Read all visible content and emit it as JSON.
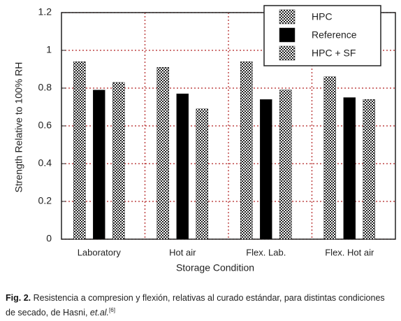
{
  "chart_data": {
    "type": "bar",
    "y_label": "Strength Relative to 100% RH",
    "x_label": "Storage Condition",
    "categories": [
      "Laboratory",
      "Hot air",
      "Flex. Lab.",
      "Flex. Hot air"
    ],
    "series": [
      {
        "name": "HPC",
        "color": "#000000",
        "pattern": "checker",
        "values": [
          0.94,
          0.91,
          0.94,
          0.86
        ]
      },
      {
        "name": "Reference",
        "color": "#000000",
        "pattern": "solid",
        "values": [
          0.79,
          0.77,
          0.74,
          0.75
        ]
      },
      {
        "name": "HPC + SF",
        "color": "#000000",
        "pattern": "checker",
        "values": [
          0.83,
          0.69,
          0.79,
          0.74
        ]
      }
    ],
    "ylim": [
      0,
      1.2
    ],
    "yticks": [
      0,
      0.2,
      0.4,
      0.6,
      0.8,
      1,
      1.2
    ],
    "grid": true,
    "grid_color": "#b22222",
    "legend": "top-right"
  },
  "caption": {
    "label": "Fig. 2.",
    "text": "Resistencia a compresion y flexión, relativas al curado estándar, para distintas condiciones de secado, de Hasni, ",
    "authors": "et.al.",
    "ref": "[6]"
  }
}
